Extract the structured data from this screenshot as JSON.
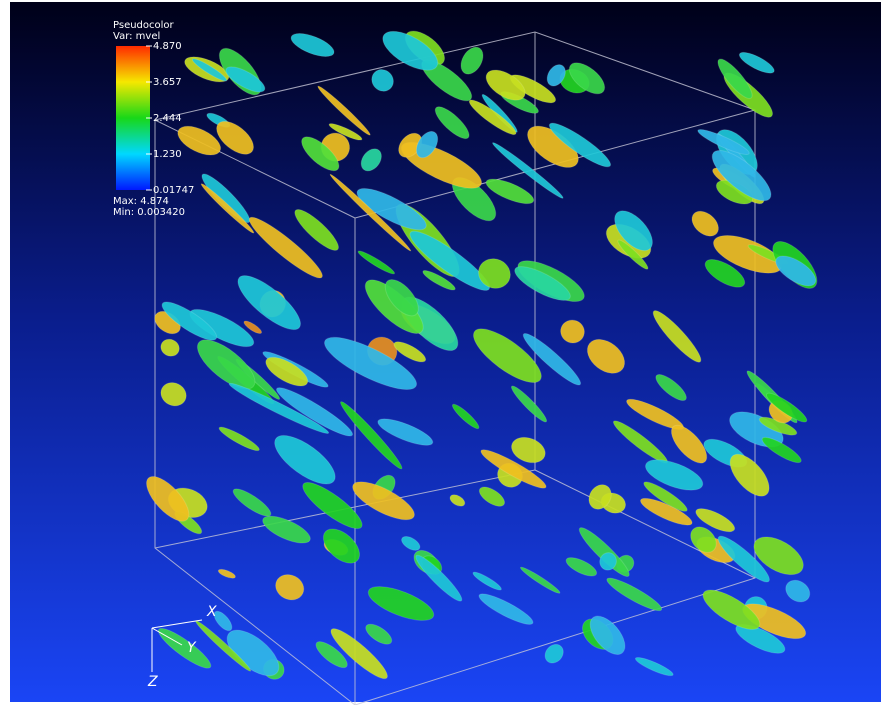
{
  "legend": {
    "title": "Pseudocolor",
    "variable": "Var: mvel",
    "ticks": [
      "4.870",
      "3.657",
      "2.444",
      "1.230",
      "0.01747"
    ],
    "max": "Max: 4.874",
    "min": "Min: 0.003420"
  },
  "axes": {
    "x": "X",
    "y": "Y",
    "z": "Z"
  }
}
